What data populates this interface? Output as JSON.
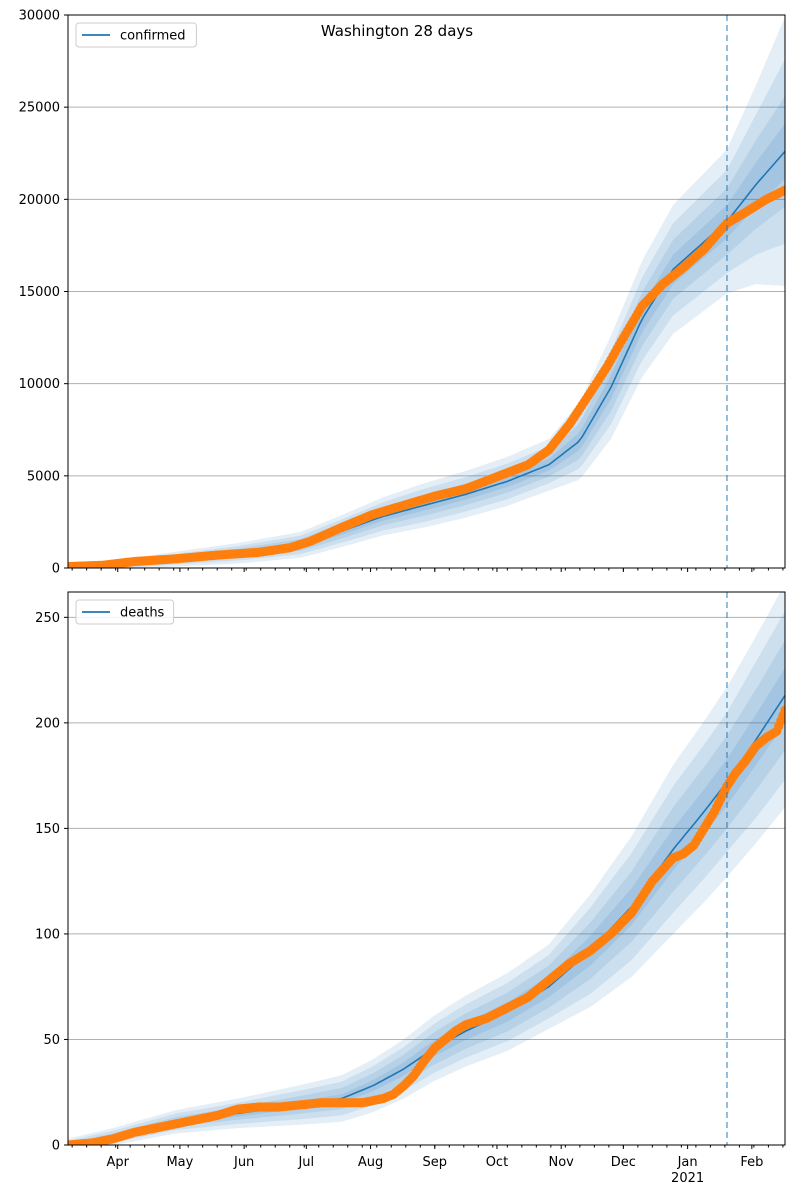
{
  "title": "Washington 28 days",
  "chart_data": [
    {
      "type": "line",
      "series_name": "confirmed",
      "legend_position": "top-left",
      "grid": "horizontal",
      "ylim": [
        0,
        30000
      ],
      "yticks": [
        0,
        5000,
        10000,
        15000,
        20000,
        25000,
        30000
      ],
      "month_tick_labels": [
        "Apr",
        "May",
        "Jun",
        "Jul",
        "Aug",
        "Sep",
        "Oct",
        "Nov",
        "Dec",
        "Jan",
        "Feb"
      ],
      "year_label": "2021",
      "xlim": [
        68,
        414
      ],
      "month_ticks_day": [
        92,
        122,
        153,
        183,
        214,
        245,
        275,
        306,
        336,
        367,
        398
      ],
      "forecast_start_day": 386,
      "model": {
        "x": [
          68,
          90,
          120,
          150,
          180,
          200,
          220,
          240,
          260,
          280,
          300,
          315,
          330,
          345,
          360,
          375,
          386,
          400,
          414
        ],
        "y": [
          0,
          150,
          480,
          800,
          1250,
          2000,
          2800,
          3400,
          4000,
          4700,
          5600,
          6900,
          9800,
          13500,
          16200,
          17700,
          18800,
          20800,
          22600
        ]
      },
      "observed": {
        "x": [
          68,
          85,
          100,
          120,
          140,
          160,
          175,
          185,
          200,
          215,
          230,
          245,
          260,
          275,
          290,
          300,
          310,
          320,
          328,
          335,
          345,
          355,
          365,
          375,
          382,
          386,
          395,
          405,
          414
        ],
        "y": [
          80,
          150,
          350,
          500,
          700,
          850,
          1100,
          1450,
          2200,
          2900,
          3400,
          3900,
          4300,
          4950,
          5600,
          6400,
          7800,
          9500,
          10900,
          12300,
          14200,
          15400,
          16300,
          17300,
          18200,
          18700,
          19300,
          20000,
          20500
        ]
      },
      "bands": {
        "x": [
          68,
          180,
          240,
          300,
          330,
          360,
          386,
          400,
          414
        ],
        "half_widths": [
          [
            30,
            160,
            280,
            320,
            650,
            800,
            900,
            1200,
            1500
          ],
          [
            60,
            320,
            560,
            640,
            1300,
            1600,
            1800,
            2400,
            3000
          ],
          [
            100,
            500,
            900,
            1000,
            2000,
            2500,
            2800,
            3800,
            5000
          ],
          [
            150,
            700,
            1200,
            1400,
            2800,
            3500,
            3900,
            5400,
            7300
          ]
        ]
      }
    },
    {
      "type": "line",
      "series_name": "deaths",
      "legend_position": "top-left",
      "grid": "horizontal",
      "ylim": [
        0,
        262
      ],
      "yticks": [
        0,
        50,
        100,
        150,
        200,
        250
      ],
      "month_tick_labels": [
        "Apr",
        "May",
        "Jun",
        "Jul",
        "Aug",
        "Sep",
        "Oct",
        "Nov",
        "Dec",
        "Jan",
        "Feb"
      ],
      "year_label": "2021",
      "xlim": [
        68,
        414
      ],
      "month_ticks_day": [
        92,
        122,
        153,
        183,
        214,
        245,
        275,
        306,
        336,
        367,
        398
      ],
      "forecast_start_day": 386,
      "model": {
        "x": [
          68,
          90,
          120,
          150,
          180,
          200,
          215,
          230,
          245,
          260,
          280,
          300,
          320,
          340,
          360,
          375,
          386,
          400,
          414
        ],
        "y": [
          0,
          4,
          11,
          15,
          19,
          22,
          28,
          36,
          46,
          54,
          63,
          75,
          92,
          113,
          140,
          158,
          172,
          192,
          213
        ]
      },
      "observed": {
        "x": [
          68,
          80,
          90,
          100,
          110,
          120,
          130,
          140,
          150,
          160,
          170,
          180,
          190,
          200,
          210,
          215,
          220,
          225,
          230,
          235,
          240,
          245,
          250,
          255,
          260,
          270,
          280,
          290,
          300,
          310,
          320,
          330,
          340,
          350,
          360,
          365,
          370,
          375,
          380,
          386,
          390,
          395,
          400,
          405,
          410,
          414
        ],
        "y": [
          0,
          1,
          3,
          6,
          8,
          10,
          12,
          14,
          17,
          18,
          18,
          19,
          20,
          20,
          20,
          21,
          22,
          24,
          28,
          33,
          40,
          46,
          50,
          54,
          57,
          60,
          65,
          70,
          78,
          86,
          92,
          100,
          110,
          125,
          136,
          138,
          142,
          150,
          158,
          170,
          176,
          182,
          189,
          193,
          196,
          206
        ]
      },
      "bands": {
        "x": [
          68,
          150,
          200,
          250,
          300,
          330,
          360,
          386,
          400,
          414
        ],
        "half_widths": [
          [
            0.5,
            1.5,
            2,
            4,
            5,
            8,
            10,
            11,
            12,
            13
          ],
          [
            1,
            3,
            5,
            8,
            10,
            15,
            20,
            22,
            24,
            26
          ],
          [
            2,
            5,
            8,
            12,
            15,
            23,
            30,
            33,
            37,
            40
          ],
          [
            3,
            7,
            11,
            16,
            20,
            30,
            40,
            45,
            49,
            53
          ]
        ]
      }
    }
  ]
}
